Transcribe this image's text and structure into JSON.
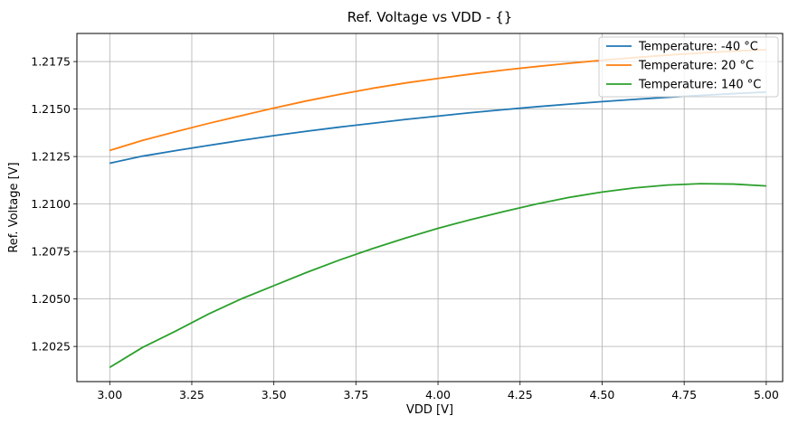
{
  "chart_data": {
    "type": "line",
    "title": "Ref. Voltage vs VDD - {}",
    "xlabel": "VDD [V]",
    "ylabel": "Ref. Voltage [V]",
    "xlim": [
      2.9,
      5.05
    ],
    "ylim": [
      1.20065,
      1.21898
    ],
    "xticks": [
      "3.00",
      "3.25",
      "3.50",
      "3.75",
      "4.00",
      "4.25",
      "4.50",
      "4.75",
      "5.00"
    ],
    "yticks": [
      "1.2025",
      "1.2050",
      "1.2075",
      "1.2100",
      "1.2125",
      "1.2150",
      "1.2175"
    ],
    "grid": true,
    "legend_position": "top-right",
    "x": [
      3.0,
      3.1,
      3.2,
      3.3,
      3.4,
      3.5,
      3.6,
      3.7,
      3.8,
      3.9,
      4.0,
      4.1,
      4.2,
      4.3,
      4.4,
      4.5,
      4.6,
      4.7,
      4.8,
      4.9,
      5.0
    ],
    "series": [
      {
        "name": "Temperature: -40 °C",
        "color": "#1f77b4",
        "values": [
          1.21215,
          1.21252,
          1.21281,
          1.21308,
          1.21335,
          1.2136,
          1.21383,
          1.21405,
          1.21425,
          1.21445,
          1.21463,
          1.21481,
          1.21497,
          1.21512,
          1.21526,
          1.21539,
          1.21551,
          1.21562,
          1.21572,
          1.21581,
          1.21589
        ]
      },
      {
        "name": "Temperature: 20 °C",
        "color": "#ff7f0e",
        "values": [
          1.21282,
          1.21335,
          1.2138,
          1.21424,
          1.21465,
          1.21505,
          1.21543,
          1.21577,
          1.21609,
          1.21637,
          1.21661,
          1.21684,
          1.21705,
          1.21724,
          1.21741,
          1.21757,
          1.21771,
          1.21784,
          1.21795,
          1.21805,
          1.21813
        ]
      },
      {
        "name": "Temperature: 140 °C",
        "color": "#2ca02c",
        "values": [
          1.2014,
          1.20245,
          1.2033,
          1.2042,
          1.205,
          1.2057,
          1.2064,
          1.20705,
          1.20765,
          1.2082,
          1.20872,
          1.20918,
          1.2096,
          1.21,
          1.21035,
          1.21063,
          1.21085,
          1.211,
          1.21107,
          1.21105,
          1.21095
        ]
      }
    ]
  }
}
